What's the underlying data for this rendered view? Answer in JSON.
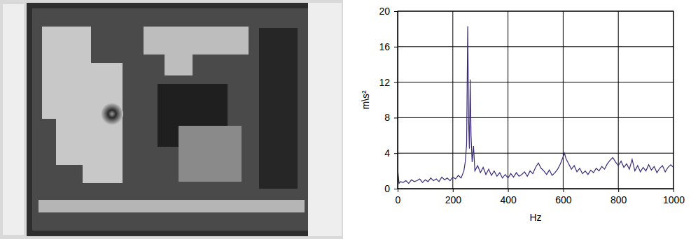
{
  "chart_data": {
    "type": "line",
    "y_label": "m\\s²",
    "x_label": "Hz",
    "color": "#3b2a78",
    "grid": true,
    "xlim": [
      0,
      1000
    ],
    "xticks": [
      0,
      200,
      400,
      600,
      800,
      1000
    ],
    "ylim": [
      0,
      20
    ],
    "yticks": [
      0,
      4,
      8,
      12,
      16,
      20
    ],
    "x": [
      0,
      5,
      10,
      20,
      30,
      40,
      50,
      60,
      70,
      80,
      90,
      100,
      110,
      120,
      130,
      140,
      150,
      160,
      170,
      180,
      190,
      200,
      210,
      220,
      230,
      240,
      245,
      250,
      254,
      257,
      260,
      263,
      266,
      270,
      275,
      280,
      290,
      300,
      310,
      320,
      330,
      340,
      350,
      360,
      370,
      380,
      390,
      400,
      410,
      420,
      430,
      440,
      450,
      460,
      470,
      480,
      490,
      500,
      510,
      520,
      530,
      540,
      550,
      560,
      570,
      580,
      590,
      600,
      605,
      610,
      620,
      630,
      640,
      650,
      660,
      670,
      680,
      690,
      700,
      710,
      720,
      730,
      740,
      750,
      760,
      770,
      780,
      790,
      800,
      810,
      820,
      830,
      840,
      850,
      860,
      870,
      880,
      890,
      900,
      910,
      920,
      930,
      940,
      950,
      960,
      970,
      980,
      990,
      1000
    ],
    "values": [
      2.2,
      0.6,
      0.8,
      0.7,
      0.9,
      0.6,
      1.0,
      0.8,
      0.9,
      1.1,
      0.7,
      1.0,
      0.8,
      1.2,
      0.9,
      1.1,
      0.8,
      1.3,
      1.0,
      1.2,
      0.9,
      1.3,
      1.1,
      1.5,
      1.2,
      2.0,
      3.0,
      5.0,
      18.3,
      8.0,
      4.5,
      12.3,
      6.0,
      3.0,
      4.8,
      2.0,
      2.6,
      1.8,
      2.4,
      1.6,
      2.2,
      1.5,
      2.0,
      1.4,
      1.8,
      1.2,
      1.6,
      1.2,
      1.7,
      1.3,
      1.8,
      1.4,
      1.6,
      1.9,
      1.4,
      2.0,
      1.7,
      2.4,
      2.9,
      2.3,
      2.0,
      1.6,
      2.1,
      1.5,
      1.8,
      2.2,
      2.8,
      3.6,
      4.0,
      3.4,
      2.8,
      2.2,
      2.6,
      1.9,
      2.3,
      1.7,
      2.0,
      1.6,
      2.1,
      1.8,
      2.3,
      2.0,
      2.5,
      2.2,
      2.8,
      3.2,
      3.5,
      3.0,
      2.6,
      3.1,
      2.4,
      2.8,
      2.2,
      3.3,
      2.0,
      2.6,
      1.9,
      2.4,
      2.0,
      2.7,
      2.1,
      2.5,
      1.8,
      2.3,
      2.6,
      1.9,
      2.4,
      2.7,
      2.4
    ]
  }
}
